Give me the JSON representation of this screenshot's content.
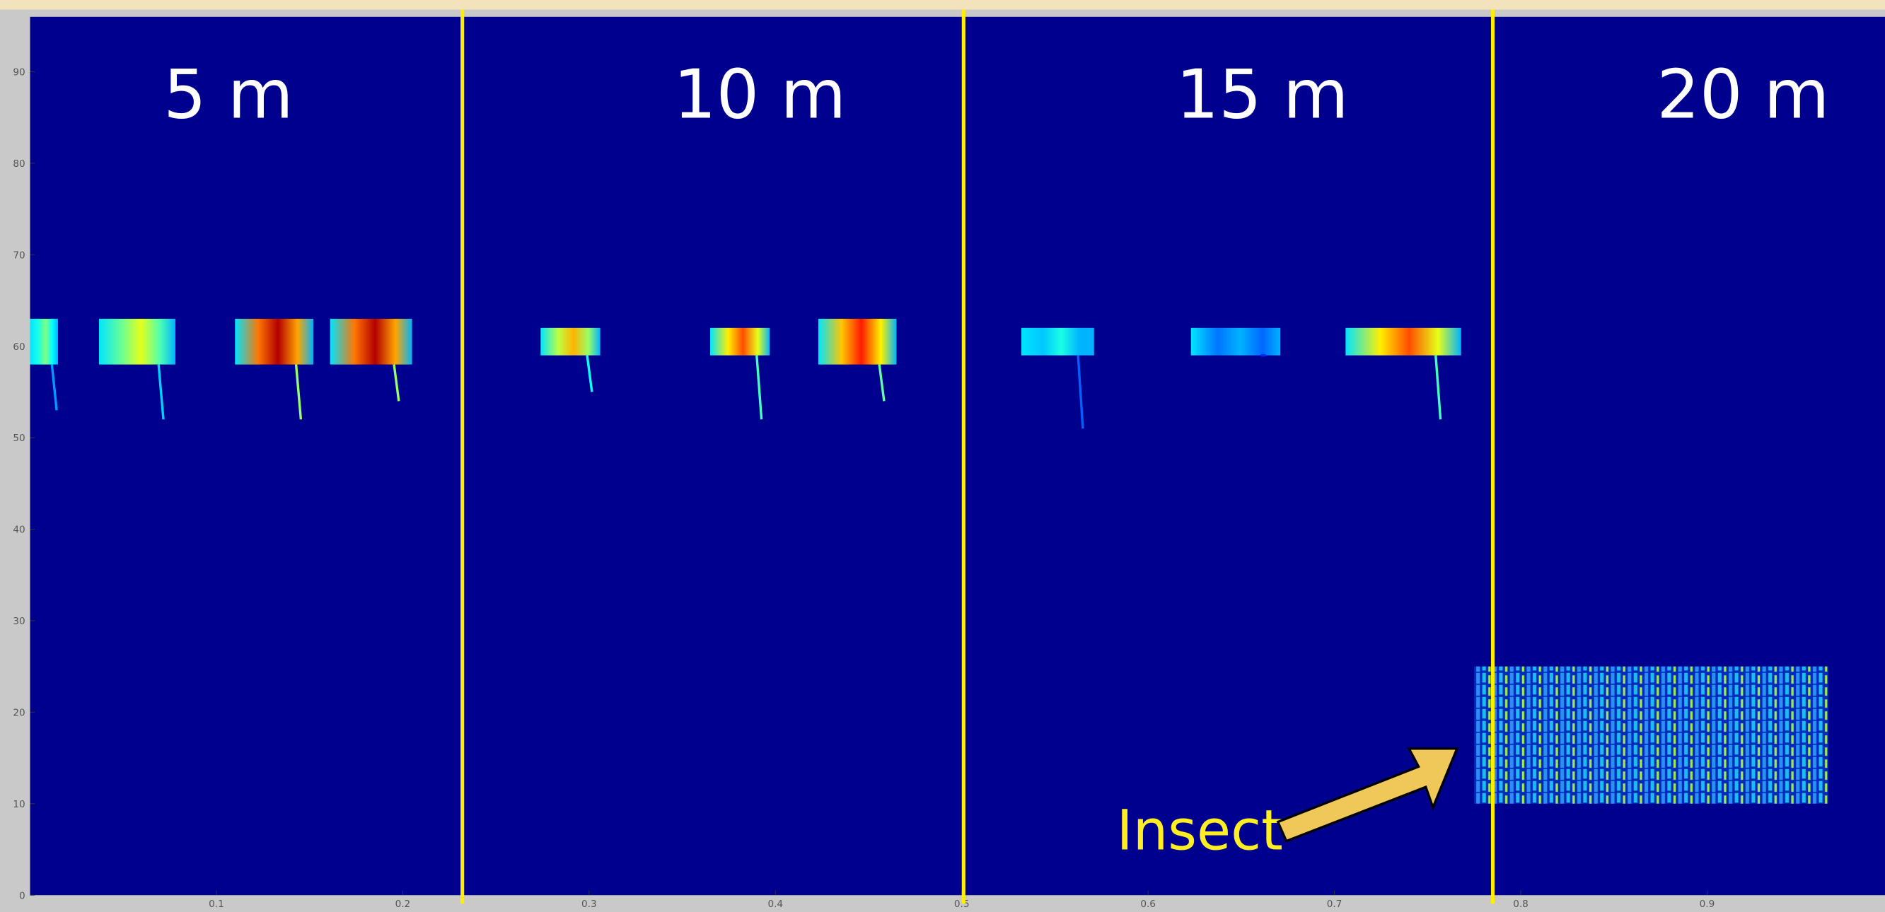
{
  "chart_data": {
    "type": "spectrogram",
    "xlim": [
      0,
      1
    ],
    "ylim": [
      0,
      96
    ],
    "xticks": [
      0.1,
      0.2,
      0.3,
      0.4,
      0.5,
      0.6,
      0.7,
      0.8,
      0.9
    ],
    "yticks": [
      0,
      10,
      20,
      30,
      40,
      50,
      60,
      70,
      80,
      90
    ],
    "dividers": [
      0.232,
      0.501,
      0.785
    ],
    "dividers_color": "#ffee00",
    "background_color": "#00008f",
    "segment_labels": [
      "5 m",
      "10 m",
      "15 m",
      "20 m"
    ],
    "calls": [
      {
        "x": [
          0.0,
          0.015
        ],
        "y": [
          58,
          63
        ],
        "sweep_to": 53,
        "intensity": 0.5
      },
      {
        "x": [
          0.037,
          0.078
        ],
        "y": [
          58,
          63
        ],
        "sweep_to": 52,
        "intensity": 0.6
      },
      {
        "x": [
          0.11,
          0.152
        ],
        "y": [
          58,
          63
        ],
        "sweep_to": 52,
        "intensity": 0.95
      },
      {
        "x": [
          0.161,
          0.205
        ],
        "y": [
          58,
          63
        ],
        "sweep_to": 54,
        "intensity": 0.95
      },
      {
        "x": [
          0.274,
          0.306
        ],
        "y": [
          59,
          62
        ],
        "sweep_to": 55,
        "intensity": 0.7
      },
      {
        "x": [
          0.365,
          0.397
        ],
        "y": [
          59,
          62
        ],
        "sweep_to": 52,
        "intensity": 0.8
      },
      {
        "x": [
          0.423,
          0.465
        ],
        "y": [
          58,
          63
        ],
        "sweep_to": 54,
        "intensity": 0.85
      },
      {
        "x": [
          0.532,
          0.571
        ],
        "y": [
          59,
          62
        ],
        "sweep_to": 51,
        "intensity": 0.4
      },
      {
        "x": [
          0.623,
          0.671
        ],
        "y": [
          59,
          62
        ],
        "sweep_to": 59,
        "intensity": 0.3
      },
      {
        "x": [
          0.706,
          0.768
        ],
        "y": [
          59,
          62
        ],
        "sweep_to": 52,
        "intensity": 0.8
      }
    ],
    "insect": {
      "label": "Insect",
      "x": [
        0.775,
        0.965
      ],
      "y": [
        10,
        25
      ],
      "intensity": 0.6
    }
  }
}
